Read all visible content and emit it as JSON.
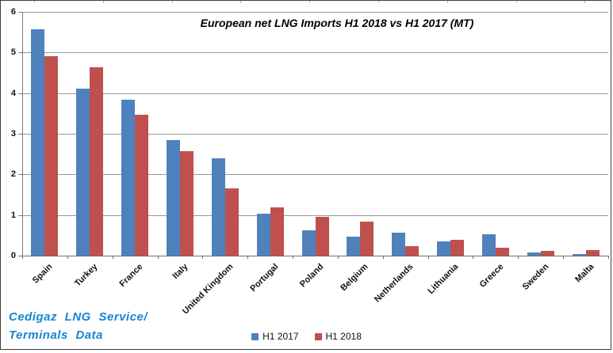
{
  "chart_data": {
    "type": "bar",
    "title": "European net LNG Imports H1 2018 vs H1 2017 (MT)",
    "categories": [
      "Spain",
      "Turkey",
      "France",
      "Italy",
      "United Kingdom",
      "Portugal",
      "Poland",
      "Belgium",
      "Netherlands",
      "Lithuania",
      "Greece",
      "Sweden",
      "Malta"
    ],
    "series": [
      {
        "name": "H1 2017",
        "color": "#4F81BD",
        "values": [
          5.57,
          4.12,
          3.83,
          2.84,
          2.4,
          1.03,
          0.62,
          0.46,
          0.57,
          0.35,
          0.53,
          0.08,
          0.04
        ]
      },
      {
        "name": "H1 2018",
        "color": "#C0504D",
        "values": [
          4.91,
          4.64,
          3.47,
          2.58,
          1.66,
          1.18,
          0.95,
          0.83,
          0.23,
          0.38,
          0.2,
          0.12,
          0.13
        ]
      }
    ],
    "xlabel": "",
    "ylabel": "",
    "ylim": [
      0,
      6
    ],
    "yticks": [
      0,
      1,
      2,
      3,
      4,
      5,
      6
    ],
    "grid": true,
    "legend_position": "bottom-center"
  },
  "source_note": {
    "line1": "Cedigaz LNG Service/",
    "line2": "Terminals Data"
  },
  "colors": {
    "series1": "#4F81BD",
    "series2": "#C0504D",
    "gridline": "#969696",
    "source_text": "#1686D2",
    "border": "#3F3F3F"
  }
}
